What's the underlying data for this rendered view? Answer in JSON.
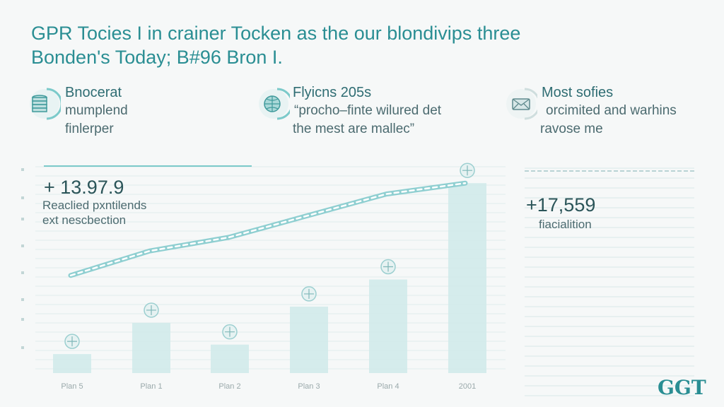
{
  "headline": {
    "line1": "GPR Tocies I in crainer Tocken as the our blondivips three",
    "line2": "Bonden's Today; B#96 Bron I."
  },
  "features": [
    {
      "icon": "coin-stack-icon",
      "title": "Bnocerat",
      "line1": "mumplend",
      "line2": "finlerper"
    },
    {
      "icon": "globe-icon",
      "title": "Flyicns 205s",
      "line1": "“procho–finte wilured det",
      "line2": "the mest are mallec”"
    },
    {
      "icon": "envelope-icon",
      "title": "Most sofies",
      "line1": "orcimited and warhins",
      "line2": "ravose me"
    }
  ],
  "kpis": [
    {
      "value": "+ 13.97.9",
      "line1": "Reaclied pxntilends",
      "line2": "ext nescbection"
    },
    {
      "value": "+17,559",
      "line1": "fiacialition"
    }
  ],
  "logo": "GGT",
  "colors": {
    "accent": "#2a8e93",
    "bar": "#cfeaea",
    "line": "#8fcfd1",
    "grid": "#e0ebeb"
  },
  "chart_data": {
    "type": "bar",
    "categories": [
      "Plan 5",
      "Plan 1",
      "Plan 2",
      "Plan 3",
      "Plan 4",
      "2001"
    ],
    "values": [
      0.7,
      1.85,
      1.05,
      2.45,
      3.45,
      7.0
    ],
    "line_values": [
      3.6,
      4.5,
      5.0,
      5.8,
      6.6,
      7.0
    ],
    "ylim": [
      0,
      7.5
    ],
    "grid": true
  }
}
